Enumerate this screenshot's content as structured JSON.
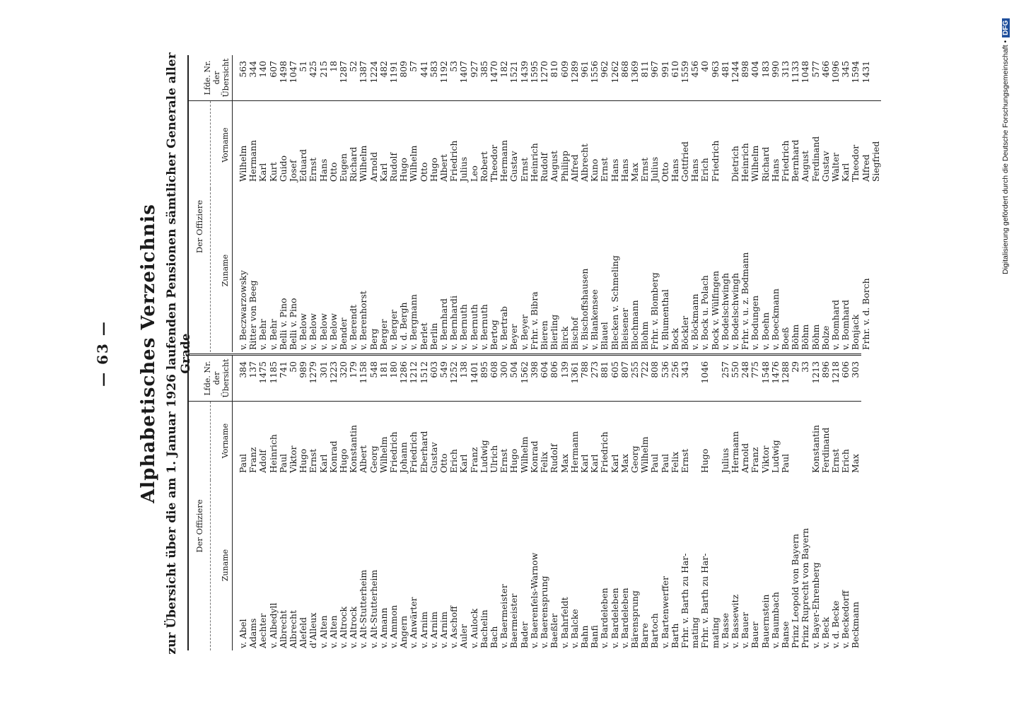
{
  "page_number": "— 63 —",
  "title": "Alphabetisches Verzeichnis",
  "subtitle": "zur Übersicht über die am 1. Januar 1926 laufenden Pensionen sämtlicher Generale aller Grade",
  "headers": {
    "group": "Der Offiziere",
    "surname": "Zuname",
    "firstname": "Vorname",
    "nr_line1": "Lfde. Nr.",
    "nr_line2": "der",
    "nr_line3": "Übersicht"
  },
  "left_rows": [
    {
      "s": "v. Abel",
      "f": "Paul",
      "n": "384"
    },
    {
      "s": "Adams",
      "f": "Franz",
      "n": "137"
    },
    {
      "s": "Aechter",
      "f": "Adolf",
      "n": "1475"
    },
    {
      "s": "v. Albedyll",
      "f": "Heinrich",
      "n": "1185"
    },
    {
      "s": "Albrecht",
      "f": "Paul",
      "n": "741"
    },
    {
      "s": "Albrecht",
      "f": "Viktor",
      "n": "50"
    },
    {
      "s": "Alefeld",
      "f": "Hugo",
      "n": "989"
    },
    {
      "s": "d'Alleux",
      "f": "Ernst",
      "n": "1279"
    },
    {
      "s": "v. Alten",
      "f": "Karl",
      "n": "301"
    },
    {
      "s": "v. Alten",
      "f": "Konrad",
      "n": "1223"
    },
    {
      "s": "v. Altrock",
      "f": "Hugo",
      "n": "320"
    },
    {
      "s": "v. Altrock",
      "f": "Konstantin",
      "n": "179"
    },
    {
      "s": "v. Alt-Stutterheim",
      "f": "Albert",
      "n": "1158"
    },
    {
      "s": "v. Alt-Stutterheim",
      "f": "Georg",
      "n": "548"
    },
    {
      "s": "v. Amann",
      "f": "Wilhelm",
      "n": "181"
    },
    {
      "s": "v. Ammon",
      "f": "Friedrich",
      "n": "180"
    },
    {
      "s": "Angern",
      "f": "Johann",
      "n": "1286"
    },
    {
      "s": "v. Anwärter",
      "f": "Friedrich",
      "n": "1212"
    },
    {
      "s": "v. Arnim",
      "f": "Eberhard",
      "n": "1512"
    },
    {
      "s": "v. Arnim",
      "f": "Gustav",
      "n": "603"
    },
    {
      "s": "v. Arnim",
      "f": "Otto",
      "n": "549"
    },
    {
      "s": "v. Aschoff",
      "f": "Erich",
      "n": "1252"
    },
    {
      "s": "Auler",
      "f": "Karl",
      "n": "138"
    },
    {
      "s": "v. Aulock",
      "f": "Franz",
      "n": "1401"
    },
    {
      "s": "",
      "f": "",
      "n": ""
    },
    {
      "s": "Bachelin",
      "f": "Ludwig",
      "n": "895"
    },
    {
      "s": "Bach",
      "f": "Ulrich",
      "n": "608"
    },
    {
      "s": "v. Baermeister",
      "f": "Ernst",
      "n": "300"
    },
    {
      "s": "Baermeister",
      "f": "Hugo",
      "n": "504"
    },
    {
      "s": "Bader",
      "f": "Wilhelm",
      "n": "1562"
    },
    {
      "s": "v. Baerenfels-Warnow",
      "f": "Konrad",
      "n": "398"
    },
    {
      "s": "v. Baerensprung",
      "f": "Felix",
      "n": "604"
    },
    {
      "s": "Baeßler",
      "f": "Rudolf",
      "n": "806"
    },
    {
      "s": "v. Bahrfeldt",
      "f": "Max",
      "n": "139"
    },
    {
      "s": "v. Balcke",
      "f": "Hermann",
      "n": "1361"
    },
    {
      "s": "Bahn",
      "f": "Karl",
      "n": "788"
    },
    {
      "s": "Banfi",
      "f": "Karl",
      "n": "273"
    },
    {
      "s": "v. Bardeleben",
      "f": "Friedrich",
      "n": "881"
    },
    {
      "s": "v. Bardeleben",
      "f": "Karl",
      "n": "605"
    },
    {
      "s": "v. Bardeleben",
      "f": "Max",
      "n": "807"
    },
    {
      "s": "Bärensprung",
      "f": "Georg",
      "n": "255"
    },
    {
      "s": "Barre",
      "f": "Wilhelm",
      "n": "722"
    },
    {
      "s": "Bartoch",
      "f": "Paul",
      "n": "808"
    },
    {
      "s": "v. Bartenwerffer",
      "f": "Paul",
      "n": "536"
    },
    {
      "s": "Barth",
      "f": "Felix",
      "n": "256"
    },
    {
      "s": "Frhr. v. Barth zu Har-",
      "f": "Ernst",
      "n": "343"
    },
    {
      "s": "mating",
      "f": "",
      "n": ""
    },
    {
      "s": "Frhr. v. Barth zu Har-",
      "f": "Hugo",
      "n": "1046"
    },
    {
      "s": "mating",
      "f": "",
      "n": ""
    },
    {
      "s": "v. Basse",
      "f": "Julius",
      "n": "257"
    },
    {
      "s": "v. Bassewitz",
      "f": "Hermann",
      "n": "550"
    },
    {
      "s": "v. Bauer",
      "f": "Arnold",
      "n": "248"
    },
    {
      "s": "Bauer",
      "f": "Franz",
      "n": "775"
    },
    {
      "s": "Bauernstein",
      "f": "Viktor",
      "n": "1548"
    },
    {
      "s": "v. Baumbach",
      "f": "Ludwig",
      "n": "1476"
    },
    {
      "s": "Banse",
      "f": "Paul",
      "n": "1288"
    },
    {
      "s": "Prinz Leopold von Bayern",
      "f": "",
      "n": "29"
    },
    {
      "s": "Prinz Ruprecht von Bayern",
      "f": "",
      "n": "33"
    },
    {
      "s": "v. Bayer-Ehrenberg",
      "f": "Konstantin",
      "n": "1213"
    },
    {
      "s": "v. Beck",
      "f": "Ferdinand",
      "n": "896"
    },
    {
      "s": "v. d. Becke",
      "f": "Ernst",
      "n": "1218"
    },
    {
      "s": "v. Beckedorff",
      "f": "Erich",
      "n": "606"
    },
    {
      "s": "Beckmann",
      "f": "Max",
      "n": "303"
    }
  ],
  "right_rows": [
    {
      "s": "v. Beczwarzowsky",
      "f": "Wilhelm",
      "n": "563"
    },
    {
      "s": "Ritter von Beeg",
      "f": "Hermann",
      "n": "344"
    },
    {
      "s": "v. Behr",
      "f": "Karl",
      "n": "140"
    },
    {
      "s": "v. Behr",
      "f": "Kurt",
      "n": "607"
    },
    {
      "s": "Belli v. Pino",
      "f": "Guido",
      "n": "1498"
    },
    {
      "s": "Belli v. Pino",
      "f": "Josef",
      "n": "1047"
    },
    {
      "s": "v. Below",
      "f": "Eduard",
      "n": "51"
    },
    {
      "s": "v. Below",
      "f": "Ernst",
      "n": "425"
    },
    {
      "s": "v. Below",
      "f": "Hans",
      "n": "215"
    },
    {
      "s": "v. Below",
      "f": "Otto",
      "n": "18"
    },
    {
      "s": "Bender",
      "f": "Eugen",
      "n": "1287"
    },
    {
      "s": "v. Berendt",
      "f": "Richard",
      "n": "52"
    },
    {
      "s": "v. Berenhorst",
      "f": "Wilhelm",
      "n": "1387"
    },
    {
      "s": "Berg",
      "f": "Arnold",
      "n": "1224"
    },
    {
      "s": "Berger",
      "f": "Karl",
      "n": "482"
    },
    {
      "s": "v. Berger",
      "f": "Rudolf",
      "n": "1191"
    },
    {
      "s": "v. d. Bergh",
      "f": "Hugo",
      "n": "809"
    },
    {
      "s": "v. Bergmann",
      "f": "Wilhelm",
      "n": "57"
    },
    {
      "s": "Berlet",
      "f": "Otto",
      "n": "441"
    },
    {
      "s": "Berlin",
      "f": "Hugo",
      "n": "583"
    },
    {
      "s": "v. Bernhard",
      "f": "Albert",
      "n": "1192"
    },
    {
      "s": "v. Bernhardi",
      "f": "Friedrich",
      "n": "53"
    },
    {
      "s": "v. Bernuth",
      "f": "Julius",
      "n": "1407"
    },
    {
      "s": "v. Bernuth",
      "f": "Leo",
      "n": "927"
    },
    {
      "s": "v. Bernuth",
      "f": "Robert",
      "n": "385"
    },
    {
      "s": "Bertog",
      "f": "Theodor",
      "n": "1470"
    },
    {
      "s": "v. Bertrab",
      "f": "Hermann",
      "n": "182"
    },
    {
      "s": "Beyer",
      "f": "Gustav",
      "n": "1521"
    },
    {
      "s": "v. Beyer",
      "f": "Ernst",
      "n": "1439"
    },
    {
      "s": "Frhr. v. Bibra",
      "f": "Heinrich",
      "n": "1595"
    },
    {
      "s": "Bieren",
      "f": "Rudolf",
      "n": "1270"
    },
    {
      "s": "Bierling",
      "f": "August",
      "n": "810"
    },
    {
      "s": "Birck",
      "f": "Philipp",
      "n": "609"
    },
    {
      "s": "Bischof",
      "f": "Alfred",
      "n": "1289"
    },
    {
      "s": "v. Bischoffshausen",
      "f": "Albrecht",
      "n": "961"
    },
    {
      "s": "v. Blankensee",
      "f": "Kuno",
      "n": "1556"
    },
    {
      "s": "Blauel",
      "f": "Ernst",
      "n": "962"
    },
    {
      "s": "Blecken v. Schmeling",
      "f": "Hans",
      "n": "1262"
    },
    {
      "s": "Bleisener",
      "f": "Hans",
      "n": "868"
    },
    {
      "s": "Blochmann",
      "f": "Max",
      "n": "1369"
    },
    {
      "s": "Blohm",
      "f": "Ernst",
      "n": "811"
    },
    {
      "s": "Frhr. v. Blomberg",
      "f": "Julius",
      "n": "967"
    },
    {
      "s": "v. Blumenthal",
      "f": "Otto",
      "n": "991"
    },
    {
      "s": "Bock",
      "f": "Hans",
      "n": "610"
    },
    {
      "s": "Böckler",
      "f": "Gottfried",
      "n": "1559"
    },
    {
      "s": "v. Böckmann",
      "f": "Hans",
      "n": "456"
    },
    {
      "s": "v. Bock u. Polach",
      "f": "Erich",
      "n": "40"
    },
    {
      "s": "Bock v. Wülfingen",
      "f": "Friedrich",
      "n": "963"
    },
    {
      "s": "v. Bodelschwingh",
      "f": "",
      "n": "481"
    },
    {
      "s": "v. Bodelschwingh",
      "f": "Dietrich",
      "n": "1244"
    },
    {
      "s": "Frhr. v. u. z. Bodmann",
      "f": "Heinrich",
      "n": "898"
    },
    {
      "s": "v. Bodungen",
      "f": "Wilhelm",
      "n": "404"
    },
    {
      "s": "v. Boehn",
      "f": "Richard",
      "n": "183"
    },
    {
      "s": "v. Boeckmann",
      "f": "Hans",
      "n": "990"
    },
    {
      "s": "Boeß",
      "f": "Friedrich",
      "n": "313"
    },
    {
      "s": "Böhm",
      "f": "Bernhard",
      "n": "1133"
    },
    {
      "s": "Böhm",
      "f": "August",
      "n": "1048"
    },
    {
      "s": "Böhm",
      "f": "Ferdinand",
      "n": "577"
    },
    {
      "s": "Bolze",
      "f": "Gustav",
      "n": "466"
    },
    {
      "s": "v. Bomhard",
      "f": "Walter",
      "n": "1096"
    },
    {
      "s": "v. Bomhard",
      "f": "Karl",
      "n": "345"
    },
    {
      "s": "Bonjack",
      "f": "Theodor",
      "n": "1594"
    },
    {
      "s": "Frhr. v. d. Borch",
      "f": "Alfred",
      "n": "1431"
    },
    {
      "s": "",
      "f": "Siegfried",
      "n": ""
    }
  ],
  "credit": "Digitalisierung gefördert durch die Deutsche Forschungsgemeinschaft •",
  "credit_logo": "DFG"
}
